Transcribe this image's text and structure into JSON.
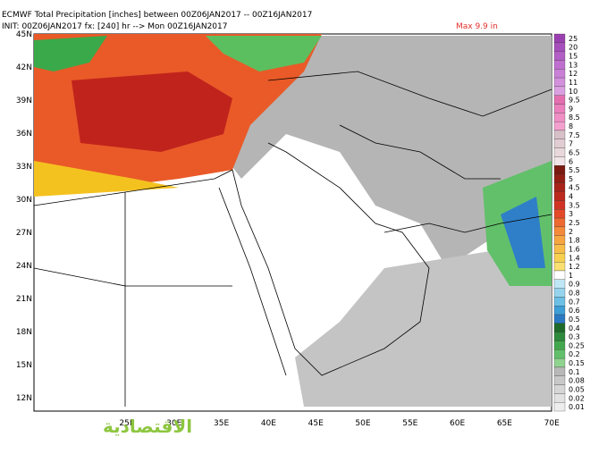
{
  "header": {
    "title": "ECMWF Total Precipitation [inches] between 00Z06JAN2017 -- 00Z16JAN2017",
    "init": "INIT: 00Z06JAN2017 fx: [240] hr --> Mon 00Z16JAN2017",
    "max": "Max 9.9 in"
  },
  "lat_labels": [
    "45N",
    "42N",
    "39N",
    "36N",
    "33N",
    "30N",
    "27N",
    "24N",
    "21N",
    "18N",
    "15N",
    "12N"
  ],
  "lon_labels": [
    "25E",
    "30E",
    "35E",
    "40E",
    "45E",
    "50E",
    "55E",
    "60E",
    "65E",
    "70E"
  ],
  "colorbar": [
    "25",
    "20",
    "15",
    "13",
    "12",
    "11",
    "10",
    "9.5",
    "9",
    "8.5",
    "8",
    "7.5",
    "7",
    "6.5",
    "6",
    "5.5",
    "5",
    "4.5",
    "4",
    "3.5",
    "3",
    "2.5",
    "2",
    "1.8",
    "1.6",
    "1.4",
    "1.2",
    "1",
    "0.9",
    "0.8",
    "0.7",
    "0.6",
    "0.5",
    "0.4",
    "0.3",
    "0.25",
    "0.2",
    "0.15",
    "0.1",
    "0.08",
    "0.05",
    "0.02",
    "0.01"
  ],
  "watermark": "الاقتصادية"
}
